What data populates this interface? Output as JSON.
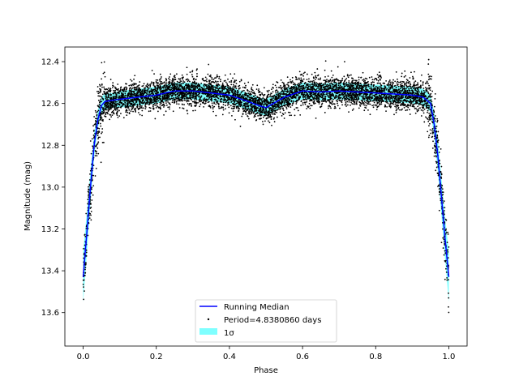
{
  "chart_data": {
    "type": "scatter",
    "title": "",
    "xlabel": "Phase",
    "ylabel": "Magnitude (mag)",
    "xlim": [
      -0.05,
      1.05
    ],
    "ylim": [
      13.76,
      12.33
    ],
    "y_inverted": true,
    "x_ticks": [
      0.0,
      0.2,
      0.4,
      0.6,
      0.8,
      1.0
    ],
    "x_tick_labels": [
      "0.0",
      "0.2",
      "0.4",
      "0.6",
      "0.8",
      "1.0"
    ],
    "y_ticks": [
      12.4,
      12.6,
      12.8,
      13.0,
      13.2,
      13.4,
      13.6
    ],
    "y_tick_labels": [
      "12.4",
      "12.6",
      "12.8",
      "13.0",
      "13.2",
      "13.4",
      "13.6"
    ],
    "grid": false,
    "legend": {
      "location": "lower center",
      "entries": [
        {
          "label": "Running Median",
          "kind": "line",
          "color": "#0000ff"
        },
        {
          "label": "Period=4.8380860 days",
          "kind": "points",
          "color": "#000000"
        },
        {
          "label": "1σ",
          "kind": "band",
          "color": "#00ffff"
        }
      ]
    },
    "colors": {
      "median": "#0000ff",
      "points": "#000000",
      "band": "#00ffff"
    },
    "series": [
      {
        "name": "Running Median",
        "type": "line",
        "x": [
          0.0,
          0.01,
          0.02,
          0.03,
          0.04,
          0.05,
          0.06,
          0.08,
          0.1,
          0.15,
          0.2,
          0.25,
          0.3,
          0.35,
          0.4,
          0.45,
          0.48,
          0.5,
          0.52,
          0.55,
          0.6,
          0.65,
          0.7,
          0.75,
          0.8,
          0.85,
          0.9,
          0.93,
          0.95,
          0.96,
          0.97,
          0.98,
          0.99,
          1.0
        ],
        "y": [
          13.43,
          13.22,
          13.0,
          12.8,
          12.68,
          12.61,
          12.59,
          12.585,
          12.58,
          12.57,
          12.56,
          12.54,
          12.54,
          12.55,
          12.56,
          12.59,
          12.61,
          12.62,
          12.6,
          12.57,
          12.54,
          12.545,
          12.54,
          12.545,
          12.55,
          12.555,
          12.56,
          12.57,
          12.6,
          12.7,
          12.85,
          13.05,
          13.25,
          13.43
        ]
      },
      {
        "name": "1σ",
        "type": "band",
        "x": [
          0.0,
          0.01,
          0.02,
          0.03,
          0.04,
          0.05,
          0.06,
          0.08,
          0.1,
          0.15,
          0.2,
          0.25,
          0.3,
          0.35,
          0.4,
          0.45,
          0.48,
          0.5,
          0.52,
          0.55,
          0.6,
          0.65,
          0.7,
          0.75,
          0.8,
          0.85,
          0.9,
          0.93,
          0.95,
          0.96,
          0.97,
          0.98,
          0.99,
          1.0
        ],
        "y_lower": [
          13.55,
          13.32,
          13.08,
          12.86,
          12.72,
          12.65,
          12.63,
          12.62,
          12.62,
          12.61,
          12.6,
          12.58,
          12.58,
          12.59,
          12.6,
          12.63,
          12.65,
          12.66,
          12.64,
          12.61,
          12.58,
          12.585,
          12.58,
          12.585,
          12.59,
          12.595,
          12.6,
          12.61,
          12.64,
          12.76,
          12.93,
          13.14,
          13.35,
          13.55
        ],
        "y_upper": [
          13.31,
          13.12,
          12.92,
          12.74,
          12.63,
          12.57,
          12.55,
          12.55,
          12.54,
          12.53,
          12.52,
          12.5,
          12.5,
          12.51,
          12.52,
          12.55,
          12.57,
          12.58,
          12.56,
          12.53,
          12.5,
          12.505,
          12.5,
          12.505,
          12.51,
          12.515,
          12.52,
          12.53,
          12.56,
          12.64,
          12.77,
          12.96,
          13.15,
          13.31
        ]
      },
      {
        "name": "Period=4.8380860 days",
        "type": "scatter",
        "point_count": 6000,
        "scatter_sigma_mag": 0.035,
        "x_range": [
          0.0,
          1.0
        ]
      }
    ]
  }
}
